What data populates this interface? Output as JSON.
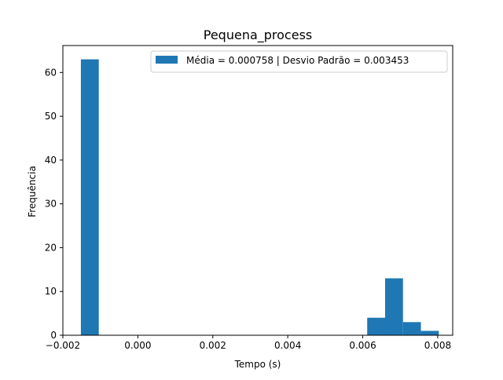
{
  "chart_data": {
    "type": "bar",
    "title": "Pequena_process",
    "xlabel": "Tempo (s)",
    "ylabel": "Frequência",
    "xlim": [
      -0.002,
      0.0084
    ],
    "ylim": [
      0,
      66.15
    ],
    "xticks": [
      {
        "value": -0.002,
        "label": "−0.002"
      },
      {
        "value": 0.0,
        "label": "0.000"
      },
      {
        "value": 0.002,
        "label": "0.002"
      },
      {
        "value": 0.004,
        "label": "0.004"
      },
      {
        "value": 0.006,
        "label": "0.006"
      },
      {
        "value": 0.008,
        "label": "0.008"
      }
    ],
    "yticks": [
      {
        "value": 0,
        "label": "0"
      },
      {
        "value": 10,
        "label": "10"
      },
      {
        "value": 20,
        "label": "20"
      },
      {
        "value": 30,
        "label": "30"
      },
      {
        "value": 40,
        "label": "40"
      },
      {
        "value": 50,
        "label": "50"
      },
      {
        "value": 60,
        "label": "60"
      }
    ],
    "bins": [
      {
        "start": -0.00152,
        "end": -0.001042,
        "count": 63
      },
      {
        "start": 0.006119,
        "end": 0.006597,
        "count": 4
      },
      {
        "start": 0.006597,
        "end": 0.007074,
        "count": 13
      },
      {
        "start": 0.007074,
        "end": 0.007552,
        "count": 3
      },
      {
        "start": 0.007552,
        "end": 0.008029,
        "count": 1
      }
    ],
    "series": [
      {
        "name": "Média = 0.000758 | Desvio Padrão = 0.003453",
        "color": "#1f77b4"
      }
    ],
    "legend_position": "top-right",
    "grid": false
  }
}
